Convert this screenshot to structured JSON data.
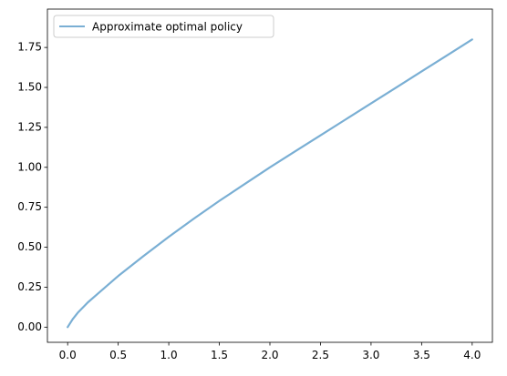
{
  "chart_data": {
    "type": "line",
    "title": "",
    "xlabel": "",
    "ylabel": "",
    "xlim": [
      -0.2,
      4.2
    ],
    "ylim": [
      -0.095,
      1.99
    ],
    "xticks": [
      0.0,
      0.5,
      1.0,
      1.5,
      2.0,
      2.5,
      3.0,
      3.5,
      4.0
    ],
    "xtick_labels": [
      "0.0",
      "0.5",
      "1.0",
      "1.5",
      "2.0",
      "2.5",
      "3.0",
      "3.5",
      "4.0"
    ],
    "yticks": [
      0.0,
      0.25,
      0.5,
      0.75,
      1.0,
      1.25,
      1.5,
      1.75
    ],
    "ytick_labels": [
      "0.00",
      "0.25",
      "0.50",
      "0.75",
      "1.00",
      "1.25",
      "1.50",
      "1.75"
    ],
    "grid": false,
    "legend_position": "top-left",
    "series": [
      {
        "name": "Approximate optimal policy",
        "color": "#7aafd4",
        "x": [
          0.0,
          0.05,
          0.1,
          0.2,
          0.3,
          0.5,
          0.75,
          1.0,
          1.25,
          1.5,
          1.75,
          2.0,
          2.25,
          2.5,
          2.75,
          3.0,
          3.25,
          3.5,
          3.75,
          4.0
        ],
        "y": [
          0.0,
          0.05,
          0.09,
          0.155,
          0.21,
          0.32,
          0.445,
          0.565,
          0.68,
          0.79,
          0.895,
          1.0,
          1.1,
          1.2,
          1.3,
          1.4,
          1.5,
          1.6,
          1.7,
          1.8
        ]
      }
    ]
  }
}
